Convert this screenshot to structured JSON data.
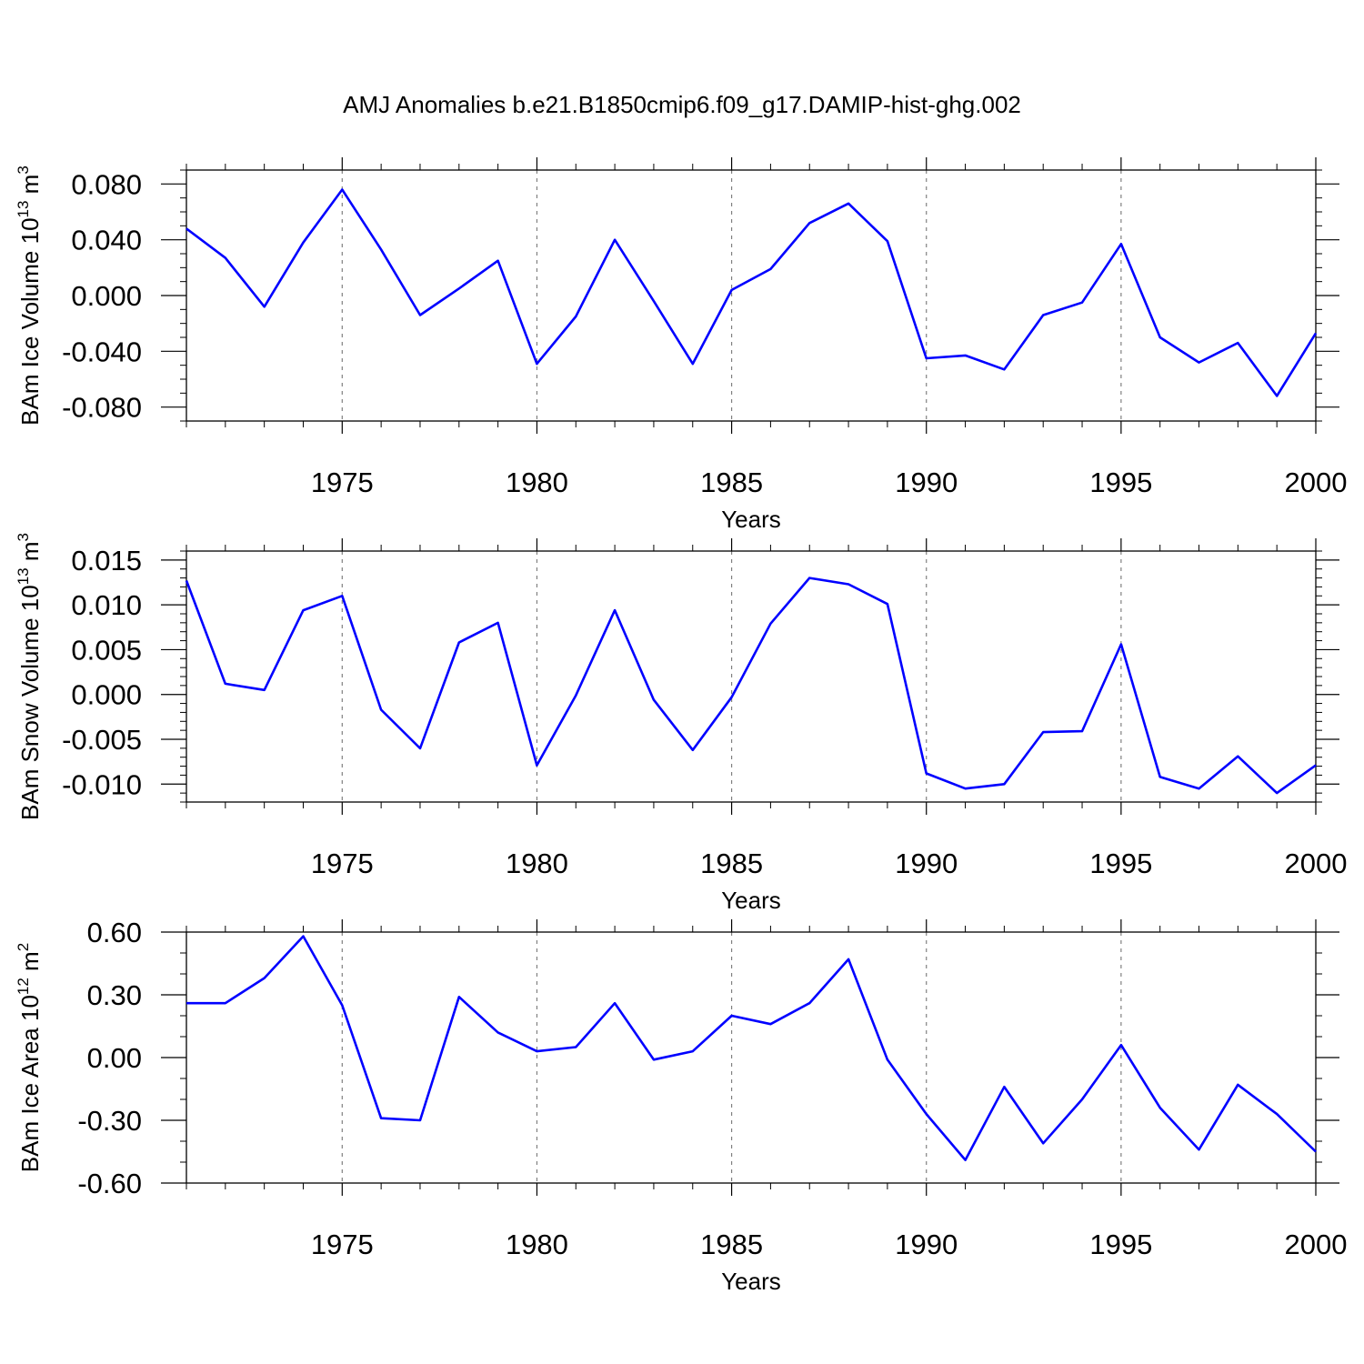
{
  "title": "AMJ Anomalies b.e21.B1850cmip6.f09_g17.DAMIP-hist-ghg.002",
  "colors": {
    "line": "#0000ff",
    "axis": "#000000",
    "grid": "#808080",
    "background": "#ffffff"
  },
  "chart_data": [
    {
      "type": "line",
      "ylabel_main": "BAm Ice Volume 10",
      "ylabel_exp": "13",
      "ylabel_unit": " m",
      "ylabel_unit_exp": "3",
      "xlabel": "Years",
      "xlim": [
        1971,
        2000
      ],
      "ylim": [
        -0.09,
        0.09
      ],
      "xticks": [
        1975,
        1980,
        1985,
        1990,
        1995,
        2000
      ],
      "yticks": [
        -0.08,
        -0.04,
        0.0,
        0.04,
        0.08
      ],
      "ytick_labels": [
        "-0.080",
        "-0.040",
        "0.000",
        "0.040",
        "0.080"
      ],
      "yminor_step": 0.01,
      "grid": "vertical dashed at major x ticks",
      "series": [
        {
          "name": "BAm Ice Volume",
          "x": [
            1971,
            1972,
            1973,
            1974,
            1975,
            1976,
            1977,
            1978,
            1979,
            1980,
            1981,
            1982,
            1983,
            1984,
            1985,
            1986,
            1987,
            1988,
            1989,
            1990,
            1991,
            1992,
            1993,
            1994,
            1995,
            1996,
            1997,
            1998,
            1999,
            2000
          ],
          "y": [
            0.048,
            0.027,
            -0.008,
            0.038,
            0.076,
            0.033,
            -0.014,
            0.005,
            0.025,
            -0.049,
            -0.015,
            0.04,
            -0.004,
            -0.049,
            0.004,
            0.019,
            0.052,
            0.066,
            0.039,
            -0.045,
            -0.043,
            -0.053,
            -0.014,
            -0.005,
            0.037,
            -0.03,
            -0.048,
            -0.034,
            -0.072,
            -0.027
          ]
        }
      ]
    },
    {
      "type": "line",
      "ylabel_main": "BAm Snow Volume 10",
      "ylabel_exp": "13",
      "ylabel_unit": " m",
      "ylabel_unit_exp": "3",
      "xlabel": "Years",
      "xlim": [
        1971,
        2000
      ],
      "ylim": [
        -0.012,
        0.016
      ],
      "xticks": [
        1975,
        1980,
        1985,
        1990,
        1995,
        2000
      ],
      "yticks": [
        -0.01,
        -0.005,
        0.0,
        0.005,
        0.01,
        0.015
      ],
      "ytick_labels": [
        "-0.010",
        "-0.005",
        "0.000",
        "0.005",
        "0.010",
        "0.015"
      ],
      "yminor_step": 0.001,
      "grid": "vertical dashed at major x ticks",
      "series": [
        {
          "name": "BAm Snow Volume",
          "x": [
            1971,
            1972,
            1973,
            1974,
            1975,
            1976,
            1977,
            1978,
            1979,
            1980,
            1981,
            1982,
            1983,
            1984,
            1985,
            1986,
            1987,
            1988,
            1989,
            1990,
            1991,
            1992,
            1993,
            1994,
            1995,
            1996,
            1997,
            1998,
            1999,
            2000
          ],
          "y": [
            0.0127,
            0.0012,
            0.0005,
            0.0094,
            0.011,
            -0.0017,
            -0.006,
            0.0058,
            0.008,
            -0.0079,
            -0.0001,
            0.0094,
            -0.0006,
            -0.0062,
            -0.0003,
            0.0079,
            0.013,
            0.0123,
            0.0101,
            -0.0088,
            -0.0105,
            -0.01,
            -0.0042,
            -0.0041,
            0.0056,
            -0.0092,
            -0.0105,
            -0.0069,
            -0.011,
            -0.0079
          ]
        }
      ]
    },
    {
      "type": "line",
      "ylabel_main": "BAm Ice Area 10",
      "ylabel_exp": "12",
      "ylabel_unit": " m",
      "ylabel_unit_exp": "2",
      "xlabel": "Years",
      "xlim": [
        1971,
        2000
      ],
      "ylim": [
        -0.6,
        0.6
      ],
      "xticks": [
        1975,
        1980,
        1985,
        1990,
        1995,
        2000
      ],
      "yticks": [
        -0.6,
        -0.3,
        0.0,
        0.3,
        0.6
      ],
      "ytick_labels": [
        "-0.60",
        "-0.30",
        "0.00",
        "0.30",
        "0.60"
      ],
      "yminor_step": 0.1,
      "grid": "vertical dashed at major x ticks",
      "series": [
        {
          "name": "BAm Ice Area",
          "x": [
            1971,
            1972,
            1973,
            1974,
            1975,
            1976,
            1977,
            1978,
            1979,
            1980,
            1981,
            1982,
            1983,
            1984,
            1985,
            1986,
            1987,
            1988,
            1989,
            1990,
            1991,
            1992,
            1993,
            1994,
            1995,
            1996,
            1997,
            1998,
            1999,
            2000
          ],
          "y": [
            0.26,
            0.26,
            0.38,
            0.58,
            0.25,
            -0.29,
            -0.3,
            0.29,
            0.12,
            0.03,
            0.05,
            0.26,
            -0.01,
            0.03,
            0.2,
            0.16,
            0.26,
            0.47,
            -0.01,
            -0.27,
            -0.49,
            -0.14,
            -0.41,
            -0.2,
            0.06,
            -0.24,
            -0.44,
            -0.13,
            -0.27,
            -0.45
          ]
        }
      ]
    }
  ]
}
